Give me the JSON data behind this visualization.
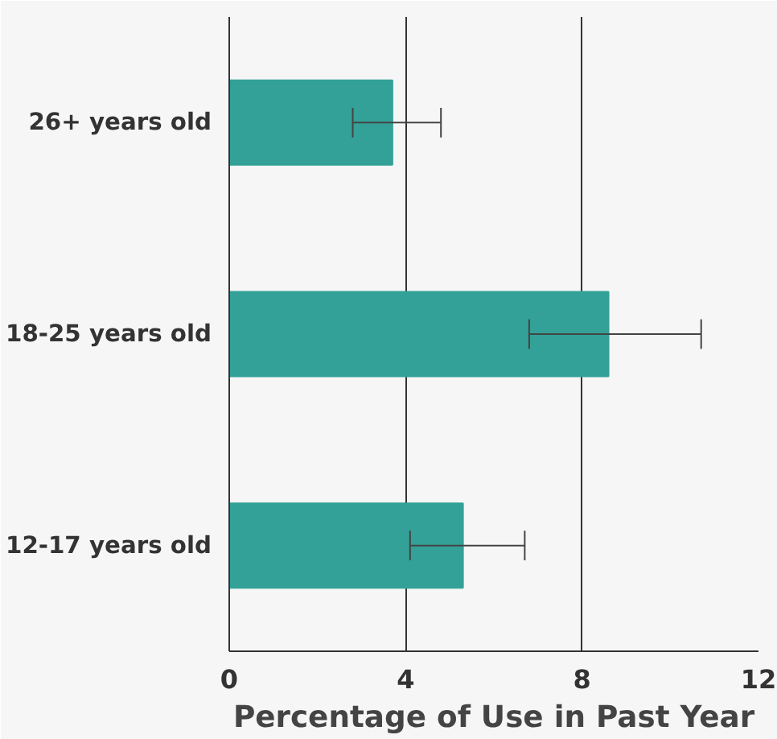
{
  "chart_data": {
    "type": "bar",
    "orientation": "horizontal",
    "xlabel": "Percentage of Use in Past Year",
    "categories": [
      "26+ years old",
      "18-25 years old",
      "12-17 years old"
    ],
    "values": [
      3.7,
      8.6,
      5.3
    ],
    "errors": [
      [
        2.8,
        4.8
      ],
      [
        6.8,
        10.7
      ],
      [
        4.1,
        6.7
      ]
    ],
    "color": "#33a197",
    "xlim": [
      0,
      12
    ],
    "xticks": [
      0,
      4,
      8,
      12
    ],
    "grid": "x"
  }
}
